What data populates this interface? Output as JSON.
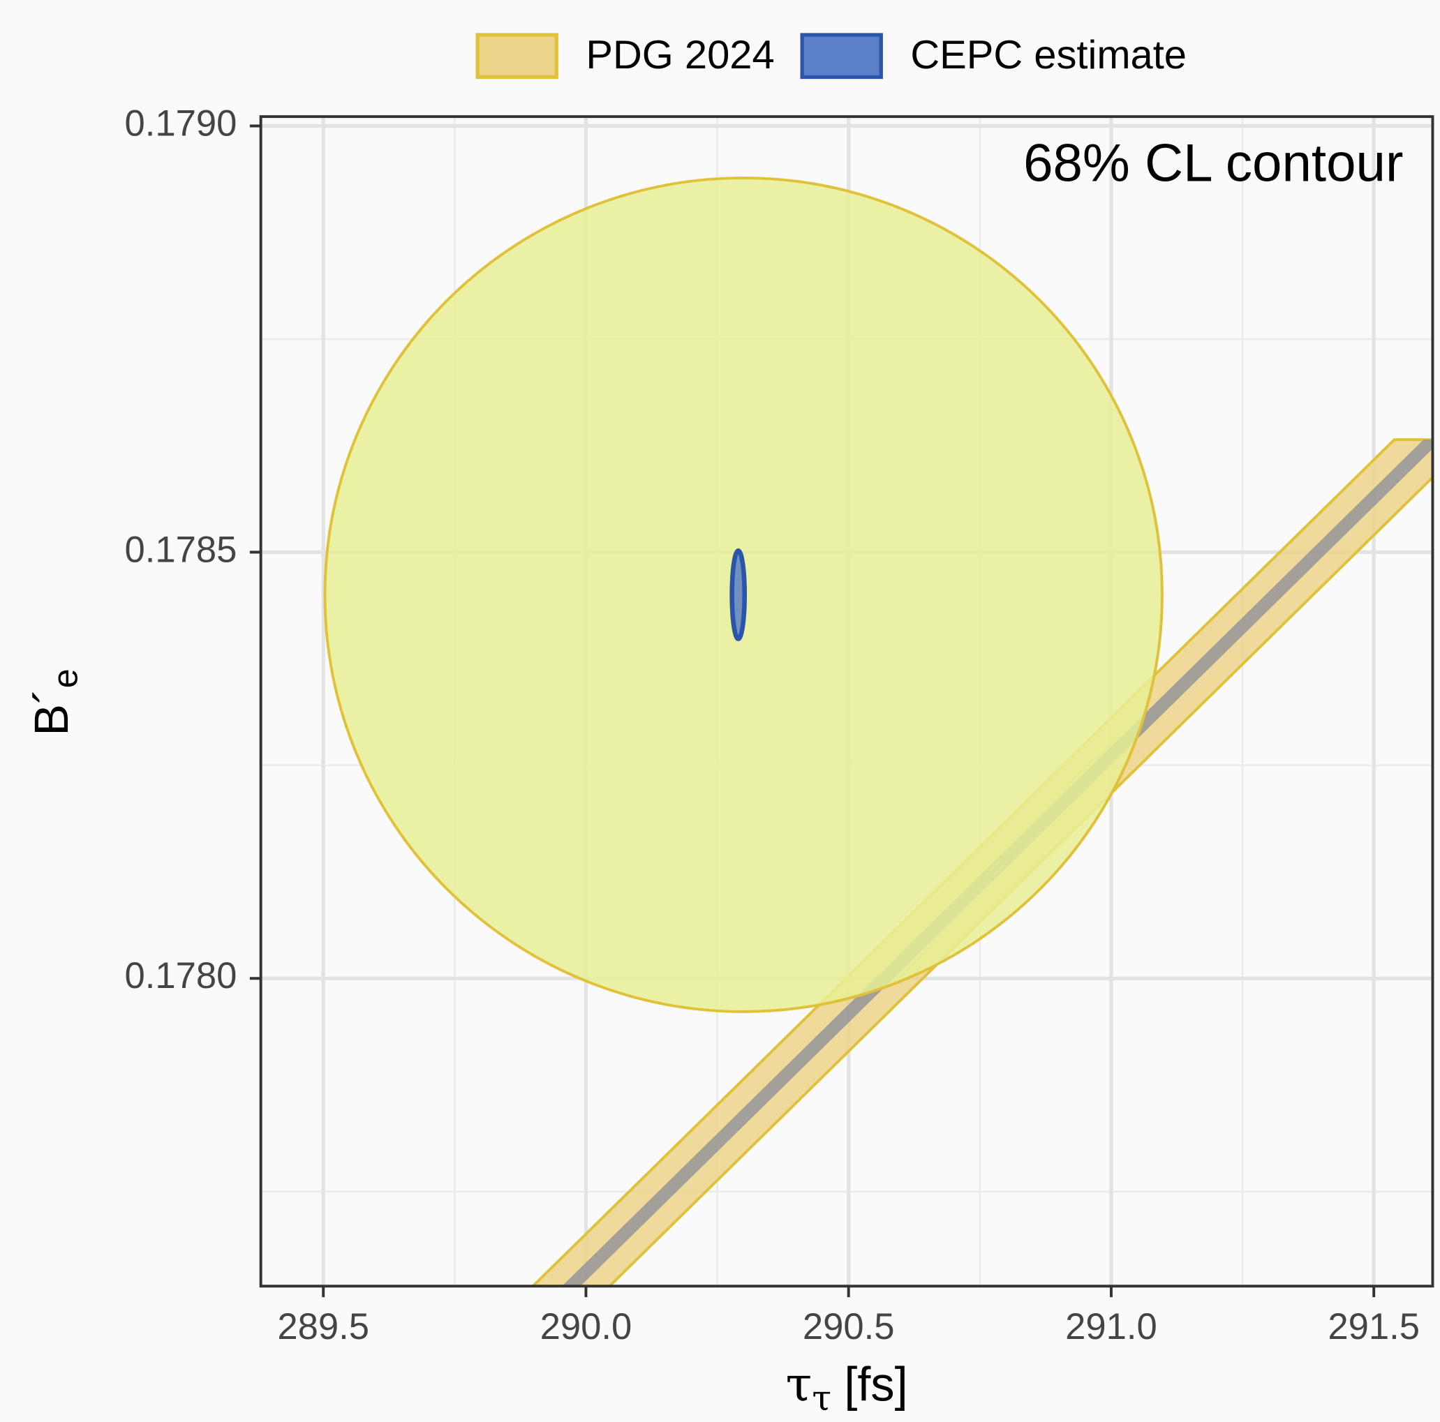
{
  "chart_data": {
    "type": "contour",
    "annotation": "68% CL contour",
    "xlabel": {
      "base": "τ",
      "sub": "τ",
      "rest": "[fs]"
    },
    "ylabel": {
      "base": "B´",
      "sub": "e"
    },
    "xlim": [
      289.381,
      291.612
    ],
    "ylim": [
      0.177639,
      0.179011
    ],
    "xticks": [
      289.5,
      {
        "value": 290,
        "label": "290.0"
      },
      290.5,
      {
        "value": 291,
        "label": "291.0"
      },
      291.5
    ],
    "yticks": [
      {
        "value": 0.178,
        "label": "0.1780"
      },
      0.1785,
      {
        "value": 0.179,
        "label": "0.1790"
      }
    ],
    "xminor": [
      289.75,
      290.25,
      290.75,
      291.25
    ],
    "yminor": [
      0.17775,
      0.17825,
      0.17875
    ],
    "grid": true,
    "legend": "top",
    "series": [
      {
        "name": "PDG 2024",
        "color": "#ecd48a",
        "edge": "#e0c23a",
        "ellipse": {
          "cx": 290.3,
          "cy": 0.17845,
          "rx": 0.797,
          "ry": 0.000489,
          "color": "#e8ee94"
        },
        "band": {
          "x": [
            289.972,
            291.612
          ],
          "y": [
            0.177639,
            0.178632
          ],
          "width": 0.146,
          "core": 0.035,
          "core_color": "#999999"
        }
      },
      {
        "name": "CEPC estimate",
        "color": "#5b7fc8",
        "edge": "#2a55a8",
        "ellipse": {
          "cx": 290.29,
          "cy": 0.17845,
          "rx": 0.012,
          "ry": 5.17e-05,
          "color": "#5b7fc8"
        }
      }
    ]
  }
}
